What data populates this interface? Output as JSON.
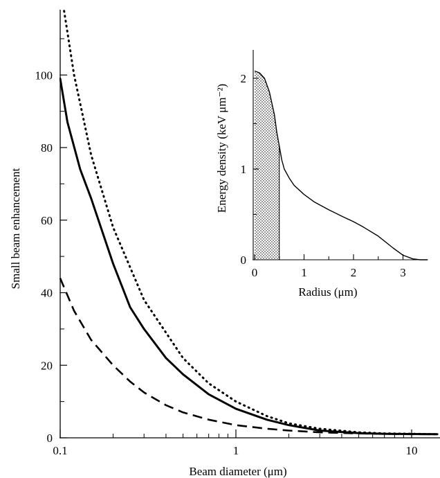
{
  "chart_data": [
    {
      "type": "line",
      "xlabel": "Beam diameter (μm)",
      "ylabel": "Small beam enhancement",
      "xscale": "log",
      "xlim": [
        0.1,
        14
      ],
      "ylim": [
        0,
        118
      ],
      "xticks": [
        {
          "value": 0.1,
          "label": "0.1"
        },
        {
          "value": 1,
          "label": "1"
        },
        {
          "value": 10,
          "label": "10"
        }
      ],
      "yticks": [
        {
          "value": 0,
          "label": "0"
        },
        {
          "value": 20,
          "label": "20"
        },
        {
          "value": 40,
          "label": "40"
        },
        {
          "value": 60,
          "label": "60"
        },
        {
          "value": 80,
          "label": "80"
        },
        {
          "value": 100,
          "label": "100"
        }
      ],
      "series": [
        {
          "style": "dotted",
          "x": [
            0.1,
            0.105,
            0.12,
            0.15,
            0.2,
            0.3,
            0.5,
            0.7,
            1,
            1.5,
            2,
            3,
            5,
            7,
            10,
            14
          ],
          "y": [
            130,
            118,
            100,
            78,
            58,
            38,
            22,
            15,
            10,
            6,
            4,
            2.5,
            1.5,
            1.2,
            1.1,
            1
          ]
        },
        {
          "style": "solid",
          "x": [
            0.1,
            0.11,
            0.13,
            0.15,
            0.2,
            0.25,
            0.3,
            0.4,
            0.5,
            0.7,
            1,
            1.5,
            2,
            3,
            5,
            7,
            10,
            14
          ],
          "y": [
            99,
            87,
            74,
            66,
            48,
            36,
            30,
            22,
            17.5,
            12,
            8,
            5,
            3.5,
            2,
            1.3,
            1.1,
            1.05,
            1
          ]
        },
        {
          "style": "dashed",
          "x": [
            0.1,
            0.12,
            0.15,
            0.2,
            0.25,
            0.3,
            0.4,
            0.5,
            0.7,
            1,
            1.5,
            2,
            3,
            5,
            10,
            14
          ],
          "y": [
            44,
            35,
            27,
            20,
            15.5,
            12.5,
            9,
            7,
            5,
            3.5,
            2.5,
            2,
            1.5,
            1.2,
            1,
            1
          ]
        }
      ]
    },
    {
      "type": "area",
      "inset": true,
      "xlabel": "Radius (μm)",
      "ylabel": "Energy density (keV μm⁻²)",
      "xlim": [
        -0.05,
        3.5
      ],
      "ylim": [
        0,
        2.3
      ],
      "xticks": [
        {
          "value": 0,
          "label": "0"
        },
        {
          "value": 1,
          "label": "1"
        },
        {
          "value": 2,
          "label": "2"
        },
        {
          "value": 3,
          "label": "3"
        }
      ],
      "yticks": [
        {
          "value": 0,
          "label": "0"
        },
        {
          "value": 1,
          "label": "1"
        },
        {
          "value": 2,
          "label": "2"
        }
      ],
      "shaded_region": {
        "x_from": 0,
        "x_to": 0.5,
        "fill": "stippled"
      },
      "series": [
        {
          "style": "solid",
          "x": [
            0,
            0.1,
            0.2,
            0.3,
            0.4,
            0.45,
            0.5,
            0.55,
            0.6,
            0.7,
            0.8,
            1.0,
            1.2,
            1.5,
            1.8,
            2.0,
            2.2,
            2.5,
            2.8,
            3.0,
            3.2,
            3.35,
            3.5
          ],
          "y": [
            2.08,
            2.06,
            2.0,
            1.85,
            1.6,
            1.4,
            1.25,
            1.1,
            1.0,
            0.9,
            0.82,
            0.72,
            0.64,
            0.55,
            0.47,
            0.42,
            0.36,
            0.26,
            0.13,
            0.05,
            0.01,
            0.0,
            0.0
          ]
        }
      ]
    }
  ]
}
